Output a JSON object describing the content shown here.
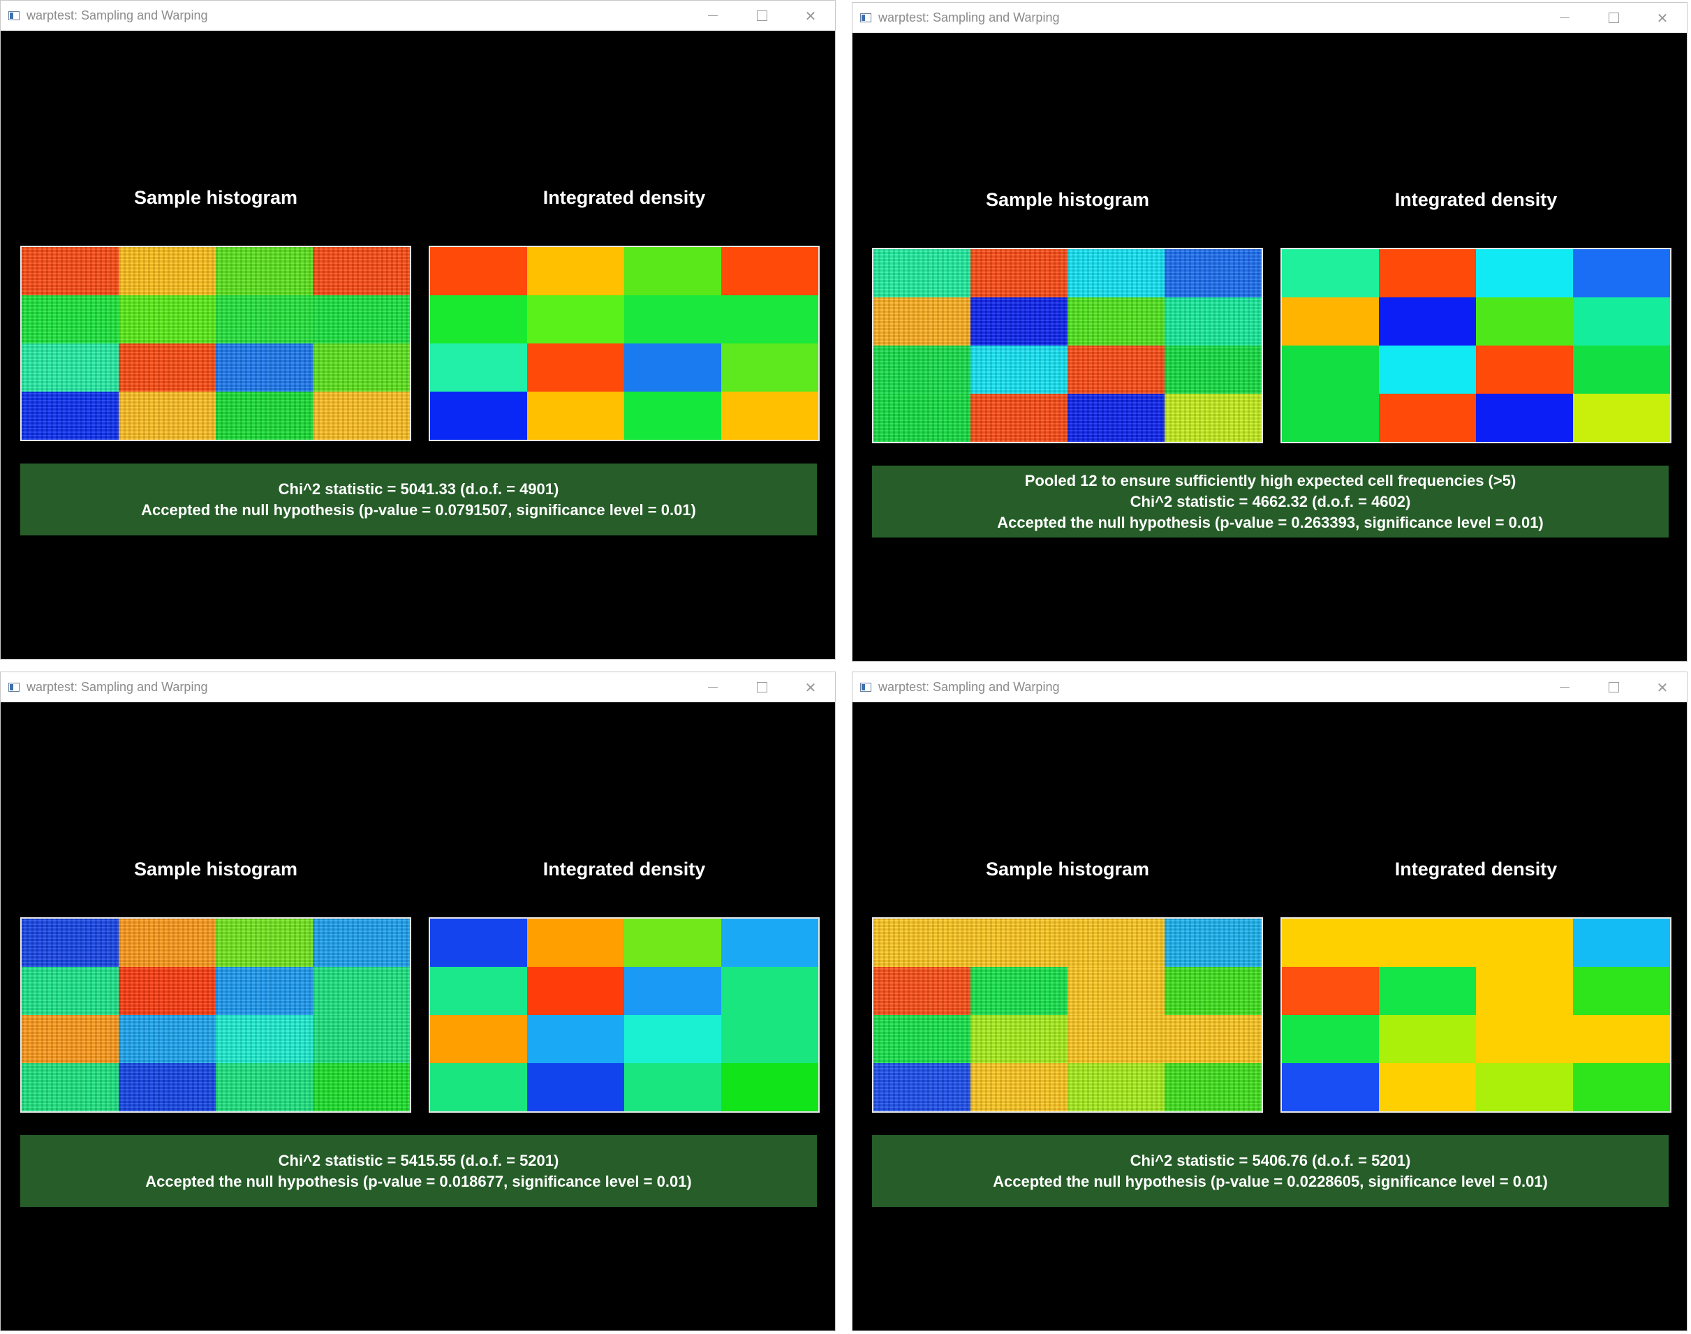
{
  "windows": [
    {
      "title": "warptest: Sampling and Warping",
      "sample_label": "Sample histogram",
      "density_label": "Integrated density",
      "sample_cells": [
        "#ff4a12",
        "#ffc018",
        "#5ae61a",
        "#ff4a12",
        "#19e83a",
        "#58f014",
        "#22e63a",
        "#17e63e",
        "#23f0a5",
        "#ff4a10",
        "#1a78f2",
        "#5ce61a",
        "#0a2ef5",
        "#ffc020",
        "#16e032",
        "#ffc020"
      ],
      "density_cells": [
        "#ff4a0a",
        "#ffc000",
        "#5ae81a",
        "#ff4a0a",
        "#19ea30",
        "#5af01a",
        "#1ae83c",
        "#1ae83c",
        "#22f0a8",
        "#ff4a0a",
        "#1a7af0",
        "#5ee81e",
        "#0a28f5",
        "#ffc000",
        "#14e83a",
        "#ffc000"
      ],
      "result_lines": [
        "Chi^2 statistic = 5041.33 (d.o.f. = 4901)",
        "Accepted the null hypothesis (p-value = 0.0791507, significance level = 0.01)"
      ]
    },
    {
      "title": "warptest: Sampling and Warping",
      "sample_label": "Sample histogram",
      "density_label": "Integrated density",
      "sample_cells": [
        "#1ef0a0",
        "#ff4a12",
        "#10e6f6",
        "#1a6ef4",
        "#ffb01e",
        "#0a22f2",
        "#50e81a",
        "#14ee9c",
        "#14e048",
        "#12e6f6",
        "#ff4a12",
        "#12e040",
        "#12e040",
        "#ff4a12",
        "#0a22f2",
        "#c6f01a"
      ],
      "density_cells": [
        "#1ef09c",
        "#ff4a0a",
        "#10eaf5",
        "#1a6ef5",
        "#ffb400",
        "#0a1ef5",
        "#4ee81a",
        "#14ee9c",
        "#12e042",
        "#10eaf5",
        "#ff4a0a",
        "#12e042",
        "#12e042",
        "#ff4a0a",
        "#0a1ef5",
        "#c8f00a"
      ],
      "result_lines": [
        "Pooled 12 to ensure sufficiently high expected cell frequencies (>5)",
        "Chi^2 statistic = 4662.32 (d.o.f. = 4602)",
        "Accepted the null hypothesis (p-value = 0.263393, significance level = 0.01)"
      ]
    },
    {
      "title": "warptest: Sampling and Warping",
      "sample_label": "Sample histogram",
      "density_label": "Integrated density",
      "sample_cells": [
        "#1444ea",
        "#ff9a18",
        "#72e81a",
        "#1aa2f2",
        "#1ae88a",
        "#ff3a0e",
        "#1a9af4",
        "#1ae680",
        "#ff9a18",
        "#1aa6f2",
        "#1af0d2",
        "#1ae680",
        "#1ae680",
        "#1244ea",
        "#1ae680",
        "#1ae42a"
      ],
      "density_cells": [
        "#1444ee",
        "#ffa000",
        "#72e81a",
        "#1aaaf5",
        "#1ae88a",
        "#ff3c0a",
        "#1a9af5",
        "#1ae680",
        "#ffa000",
        "#1aaaf5",
        "#1af0d2",
        "#1ae680",
        "#1ae680",
        "#1244ee",
        "#1ae680",
        "#12e41a"
      ],
      "result_lines": [
        "Chi^2 statistic = 5415.55 (d.o.f. = 5201)",
        "Accepted the null hypothesis (p-value = 0.018677, significance level = 0.01)"
      ]
    },
    {
      "title": "warptest: Sampling and Warping",
      "sample_label": "Sample histogram",
      "density_label": "Integrated density",
      "sample_cells": [
        "#ffc81e",
        "#ffc81e",
        "#ffc81e",
        "#18b4f2",
        "#ff4e14",
        "#14e64a",
        "#ffc81e",
        "#3ee41a",
        "#14e64a",
        "#a8f01a",
        "#ffc81e",
        "#ffc81e",
        "#1a4ef0",
        "#ffc81e",
        "#a8f01a",
        "#40e41a"
      ],
      "density_cells": [
        "#ffd000",
        "#ffd000",
        "#ffd000",
        "#14bcf5",
        "#ff5010",
        "#14e648",
        "#ffd000",
        "#2ee41a",
        "#14e648",
        "#aaf00a",
        "#ffd000",
        "#ffd000",
        "#1a4ef5",
        "#ffd000",
        "#aaf00a",
        "#2ee41a"
      ],
      "result_lines": [
        "Chi^2 statistic = 5406.76 (d.o.f. = 5201)",
        "Accepted the null hypothesis (p-value = 0.0228605, significance level = 0.01)"
      ]
    }
  ]
}
